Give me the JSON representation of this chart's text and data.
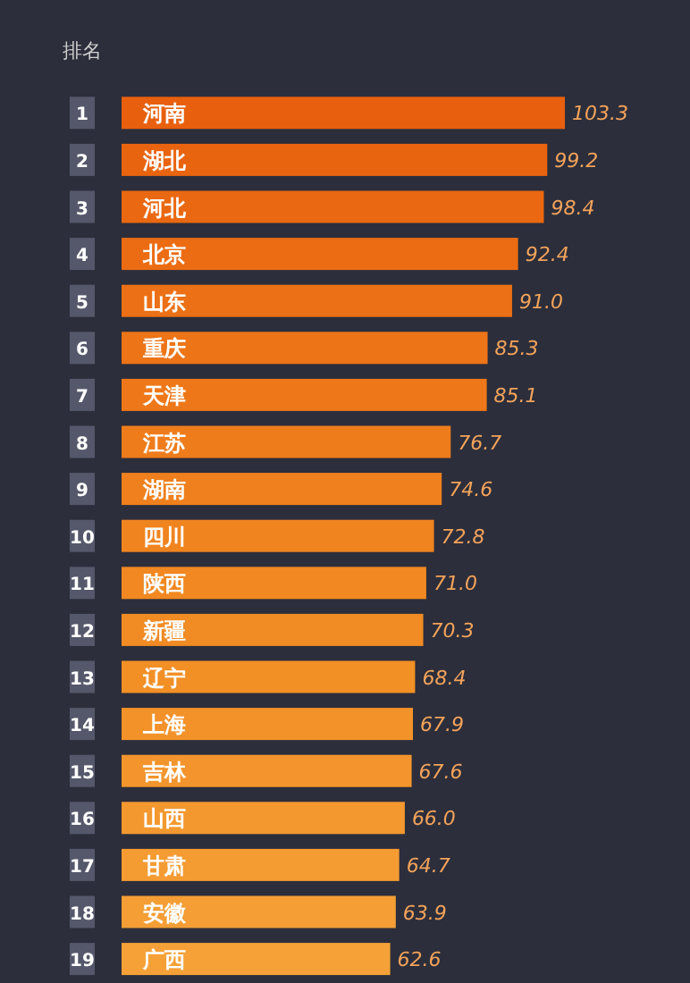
{
  "chart_data": {
    "type": "bar",
    "orientation": "horizontal",
    "ylabel": "排名",
    "categories": [
      "河南",
      "湖北",
      "河北",
      "北京",
      "山东",
      "重庆",
      "天津",
      "江苏",
      "湖南",
      "四川",
      "陕西",
      "新疆",
      "辽宁",
      "上海",
      "吉林",
      "山西",
      "甘肃",
      "安徽",
      "广西"
    ],
    "values": [
      103.3,
      99.2,
      98.4,
      92.4,
      91.0,
      85.3,
      85.1,
      76.7,
      74.6,
      72.8,
      71.0,
      70.3,
      68.4,
      67.9,
      67.6,
      66.0,
      64.7,
      63.9,
      62.6
    ],
    "value_labels": [
      "103.3",
      "99.2",
      "98.4",
      "92.4",
      "91.0",
      "85.3",
      "85.1",
      "76.7",
      "74.6",
      "72.8",
      "71.0",
      "70.3",
      "68.4",
      "67.9",
      "67.6",
      "66.0",
      "64.7",
      "63.9",
      "62.6"
    ],
    "colors": [
      "#e8600e",
      "#e9640f",
      "#ea6811",
      "#eb6c13",
      "#ec7015",
      "#ed7417",
      "#ee7819",
      "#ef7c1b",
      "#ef801d",
      "#f0841f",
      "#f18821",
      "#f18b23",
      "#f28f25",
      "#f29229",
      "#f3952c",
      "#f3982f",
      "#f49b32",
      "#f49e35",
      "#f5a138"
    ],
    "annotations": [
      "1",
      "2",
      "3",
      "4",
      "5",
      "6",
      "7",
      "8",
      "9",
      "10",
      "11",
      "12",
      "13",
      "14",
      "15",
      "16",
      "17",
      "18",
      "19"
    ]
  }
}
